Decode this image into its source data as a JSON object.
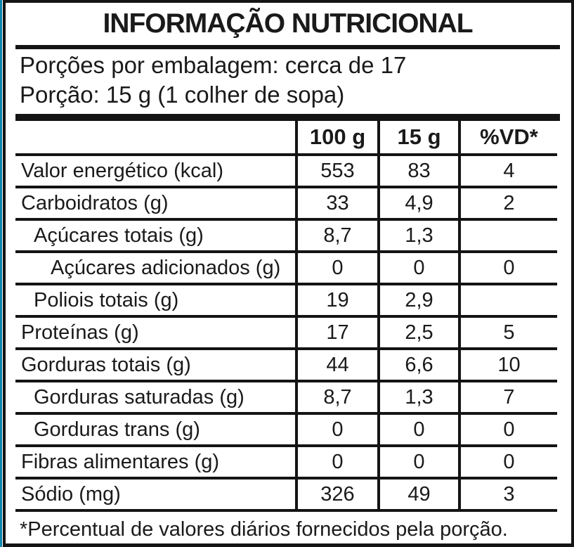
{
  "title": "INFORMAÇÃO NUTRICIONAL",
  "serving": {
    "line1": "Porções por embalagem: cerca de 17",
    "line2": "Porção: 15 g (1 colher de sopa)"
  },
  "table": {
    "columns": [
      "",
      "100 g",
      "15 g",
      "%VD*"
    ],
    "rows": [
      {
        "label": "Valor energético (kcal)",
        "indent": 0,
        "per100": "553",
        "per15": "83",
        "vd": "4"
      },
      {
        "label": "Carboidratos (g)",
        "indent": 0,
        "per100": "33",
        "per15": "4,9",
        "vd": "2"
      },
      {
        "label": "Açúcares totais (g)",
        "indent": 1,
        "per100": "8,7",
        "per15": "1,3",
        "vd": ""
      },
      {
        "label": "Açúcares adicionados (g)",
        "indent": 2,
        "per100": "0",
        "per15": "0",
        "vd": "0"
      },
      {
        "label": "Poliois totais (g)",
        "indent": 1,
        "per100": "19",
        "per15": "2,9",
        "vd": ""
      },
      {
        "label": "Proteínas (g)",
        "indent": 0,
        "per100": "17",
        "per15": "2,5",
        "vd": "5"
      },
      {
        "label": "Gorduras totais (g)",
        "indent": 0,
        "per100": "44",
        "per15": "6,6",
        "vd": "10"
      },
      {
        "label": "Gorduras saturadas (g)",
        "indent": 1,
        "per100": "8,7",
        "per15": "1,3",
        "vd": "7"
      },
      {
        "label": "Gorduras trans (g)",
        "indent": 1,
        "per100": "0",
        "per15": "0",
        "vd": "0"
      },
      {
        "label": "Fibras alimentares (g)",
        "indent": 0,
        "per100": "0",
        "per15": "0",
        "vd": "0"
      },
      {
        "label": "Sódio (mg)",
        "indent": 0,
        "per100": "326",
        "per15": "49",
        "vd": "3"
      }
    ]
  },
  "footnote": "*Percentual de valores diários fornecidos pela porção.",
  "colors": {
    "accent_teal": "#0d86ae",
    "border_black": "#141414",
    "text_black": "#1a1a1a",
    "background": "#ffffff"
  }
}
